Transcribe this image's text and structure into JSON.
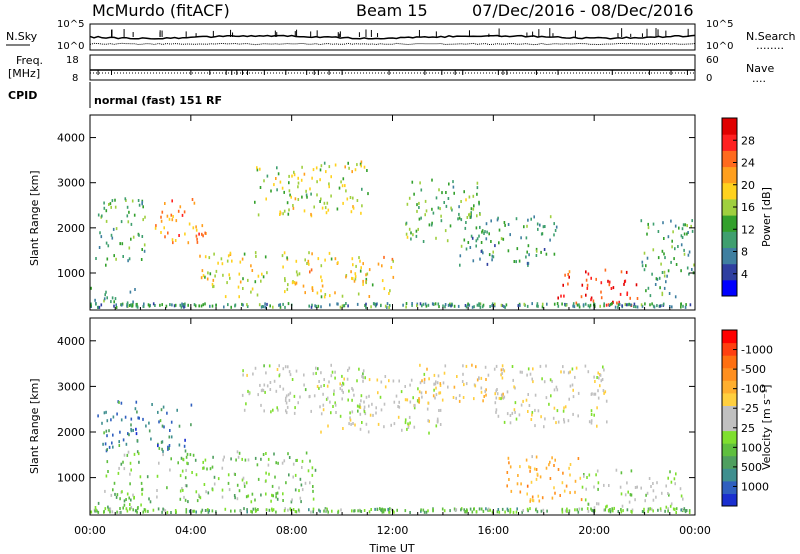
{
  "header": {
    "station": "McMurdo (fitACF)",
    "beam": "Beam 15",
    "date_range": "07/Dec/2016 - 08/Dec/2016"
  },
  "noise_panel": {
    "left_label": "N.Sky",
    "right_label": "N.Search",
    "right_marker": "........",
    "y_ticks_left": [
      "10^5",
      "10^0"
    ],
    "y_ticks_right": [
      "10^5",
      "10^0"
    ]
  },
  "freq_panel": {
    "left_label_1": "Freq.",
    "left_label_2": "[MHz]",
    "right_label": "Nave",
    "right_marker": "....",
    "y_ticks_left": [
      "18",
      "8"
    ],
    "y_ticks_right": [
      "60",
      "0"
    ]
  },
  "cpid": {
    "label": "CPID",
    "value": "normal (fast) 151 RF"
  },
  "x_axis": {
    "label": "Time UT",
    "ticks": [
      "00:00",
      "04:00",
      "08:00",
      "12:00",
      "16:00",
      "20:00",
      "00:00"
    ]
  },
  "chart_data": [
    {
      "type": "heatmap",
      "panel": "power",
      "xlabel": "Time UT",
      "ylabel": "Slant Range [km]",
      "xlim": [
        0,
        24
      ],
      "ylim": [
        180,
        4500
      ],
      "y_ticks": [
        "1000",
        "2000",
        "3000",
        "4000"
      ],
      "colorbar": {
        "label": "Power [dB]",
        "ticks": [
          "4",
          "8",
          "12",
          "16",
          "20",
          "24",
          "28"
        ],
        "colors": [
          "#0000ff",
          "#2f3fa0",
          "#3f7fa0",
          "#3f9f6f",
          "#33a02c",
          "#9fcf3f",
          "#ffd21e",
          "#ff9f1e",
          "#ff6a1e",
          "#ff2020",
          "#e00000"
        ]
      },
      "regions": [
        {
          "t": [
            0.2,
            2.2
          ],
          "r": [
            1200,
            2700
          ],
          "level": 11
        },
        {
          "t": [
            2.5,
            4.6
          ],
          "r": [
            1700,
            2700
          ],
          "level": 22
        },
        {
          "t": [
            4.3,
            7.0
          ],
          "r": [
            500,
            1500
          ],
          "level": 17
        },
        {
          "t": [
            6.5,
            11.0
          ],
          "r": [
            2300,
            3500
          ],
          "level": 15
        },
        {
          "t": [
            7.5,
            12.0
          ],
          "r": [
            500,
            1500
          ],
          "level": 18
        },
        {
          "t": [
            12.5,
            15.5
          ],
          "r": [
            1700,
            3100
          ],
          "level": 12
        },
        {
          "t": [
            14.5,
            18.5
          ],
          "r": [
            1200,
            2300
          ],
          "level": 9
        },
        {
          "t": [
            18.5,
            21.7
          ],
          "r": [
            300,
            1100
          ],
          "level": 27
        },
        {
          "t": [
            21.8,
            24.0
          ],
          "r": [
            500,
            2200
          ],
          "level": 10
        },
        {
          "t": [
            0.0,
            2.0
          ],
          "r": [
            300,
            700
          ],
          "level": 9
        }
      ]
    },
    {
      "type": "heatmap",
      "panel": "velocity",
      "xlabel": "Time UT",
      "ylabel": "Slant Range [km]",
      "xlim": [
        0,
        24
      ],
      "ylim": [
        180,
        4500
      ],
      "y_ticks": [
        "1000",
        "2000",
        "3000",
        "4000"
      ],
      "colorbar": {
        "label": "Velocity [m s⁻¹]",
        "ticks": [
          "1000",
          "500",
          "100",
          "25",
          "-25",
          "-100",
          "-500",
          "-1000"
        ],
        "colors": [
          "#1a2fcf",
          "#2f5fbf",
          "#3f8f8f",
          "#4f9f5f",
          "#5fbf3f",
          "#7fdf2f",
          "#c0c0c0",
          "#c0c0c0",
          "#ffcf3f",
          "#ffaf2f",
          "#ff8f1f",
          "#ff6f10",
          "#ff3f10",
          "#ff0000"
        ]
      },
      "regions": [
        {
          "t": [
            0.2,
            4.0
          ],
          "r": [
            1600,
            2700
          ],
          "v": 700
        },
        {
          "t": [
            0.5,
            9.0
          ],
          "r": [
            500,
            1600
          ],
          "v": 300
        },
        {
          "t": [
            6.0,
            11.0
          ],
          "r": [
            2400,
            3500
          ],
          "v": 80
        },
        {
          "t": [
            9.0,
            14.0
          ],
          "r": [
            2000,
            3300
          ],
          "v": 0
        },
        {
          "t": [
            13.0,
            16.5
          ],
          "r": [
            2600,
            3500
          ],
          "v": -200
        },
        {
          "t": [
            16.0,
            20.5
          ],
          "r": [
            2100,
            3500
          ],
          "v": 0
        },
        {
          "t": [
            16.5,
            19.5
          ],
          "r": [
            500,
            1500
          ],
          "v": -400
        },
        {
          "t": [
            19.5,
            23.5
          ],
          "r": [
            300,
            1200
          ],
          "v": 150
        },
        {
          "t": [
            0.0,
            2.0
          ],
          "r": [
            300,
            700
          ],
          "v": 300
        }
      ]
    }
  ]
}
